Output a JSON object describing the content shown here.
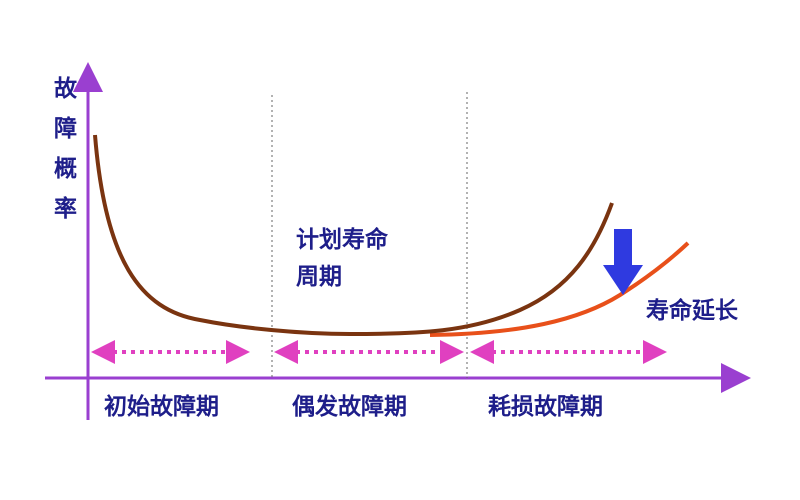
{
  "y_axis_label": [
    "故",
    "障",
    "概",
    "率"
  ],
  "phases": [
    "初始故障期",
    "偶发故障期",
    "耗损故障期"
  ],
  "planned_life": [
    "计划寿命",
    "周期"
  ],
  "life_extension": "寿命延长",
  "colors": {
    "axis": "#9a3fd0",
    "original_curve": "#7a3410",
    "extended_curve": "#e8501a",
    "text": "#1e1e8a",
    "phase_arrows": "#e040c0",
    "reduction_arrow": "#2f3ae0"
  }
}
